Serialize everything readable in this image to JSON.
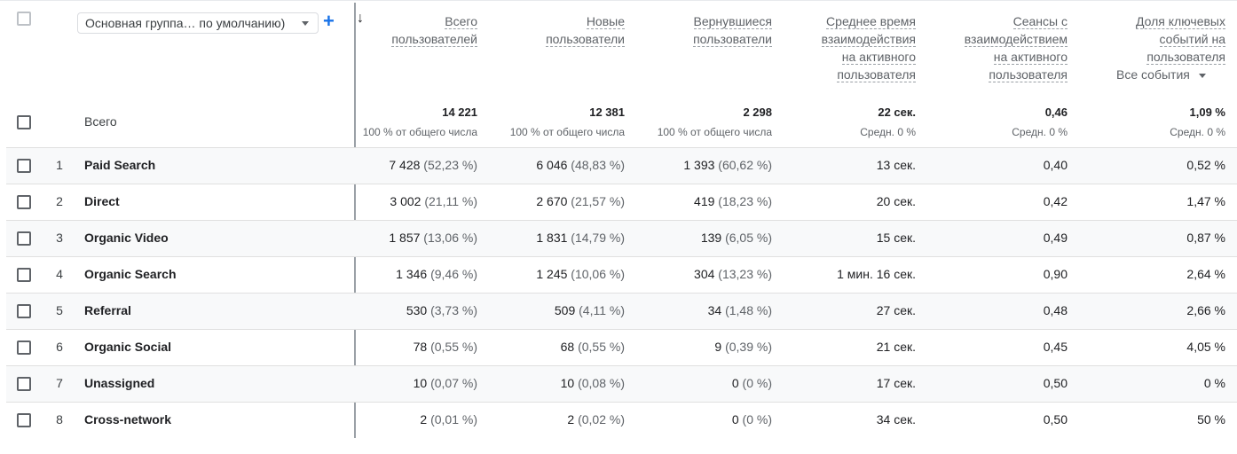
{
  "dimension_selector": {
    "label": "Основная группа… по умолчанию)"
  },
  "headers": [
    {
      "lines": [
        "Всего",
        "пользователей"
      ]
    },
    {
      "lines": [
        "Новые",
        "пользователи"
      ]
    },
    {
      "lines": [
        "Вернувшиеся",
        "пользователи"
      ]
    },
    {
      "lines": [
        "Среднее время",
        "взаимодействия",
        "на активного",
        "пользователя"
      ]
    },
    {
      "lines": [
        "Сеансы с",
        "взаимодействием",
        "на активного",
        "пользователя"
      ]
    },
    {
      "lines": [
        "Доля ключевых",
        "событий на",
        "пользователя"
      ]
    }
  ],
  "events_dropdown": {
    "label": "Все события"
  },
  "totals": {
    "label": "Всего",
    "values": [
      "14 221",
      "12 381",
      "2 298",
      "22 сек.",
      "0,46",
      "1,09 %"
    ],
    "subs": [
      "100 % от общего числа",
      "100 % от общего числа",
      "100 % от общего числа",
      "Средн. 0 %",
      "Средн. 0 %",
      "Средн. 0 %"
    ]
  },
  "rows": [
    {
      "index": "1",
      "name": "Paid Search",
      "users": "7 428",
      "users_pct": "(52,23 %)",
      "new": "6 046",
      "new_pct": "(48,83 %)",
      "ret": "1 393",
      "ret_pct": "(60,62 %)",
      "time": "13 сек.",
      "sessions": "0,40",
      "rate": "0,52 %"
    },
    {
      "index": "2",
      "name": "Direct",
      "users": "3 002",
      "users_pct": "(21,11 %)",
      "new": "2 670",
      "new_pct": "(21,57 %)",
      "ret": "419",
      "ret_pct": "(18,23 %)",
      "time": "20 сек.",
      "sessions": "0,42",
      "rate": "1,47 %"
    },
    {
      "index": "3",
      "name": "Organic Video",
      "users": "1 857",
      "users_pct": "(13,06 %)",
      "new": "1 831",
      "new_pct": "(14,79 %)",
      "ret": "139",
      "ret_pct": "(6,05 %)",
      "time": "15 сек.",
      "sessions": "0,49",
      "rate": "0,87 %"
    },
    {
      "index": "4",
      "name": "Organic Search",
      "users": "1 346",
      "users_pct": "(9,46 %)",
      "new": "1 245",
      "new_pct": "(10,06 %)",
      "ret": "304",
      "ret_pct": "(13,23 %)",
      "time": "1 мин. 16 сек.",
      "sessions": "0,90",
      "rate": "2,64 %"
    },
    {
      "index": "5",
      "name": "Referral",
      "users": "530",
      "users_pct": "(3,73 %)",
      "new": "509",
      "new_pct": "(4,11 %)",
      "ret": "34",
      "ret_pct": "(1,48 %)",
      "time": "27 сек.",
      "sessions": "0,48",
      "rate": "2,66 %"
    },
    {
      "index": "6",
      "name": "Organic Social",
      "users": "78",
      "users_pct": "(0,55 %)",
      "new": "68",
      "new_pct": "(0,55 %)",
      "ret": "9",
      "ret_pct": "(0,39 %)",
      "time": "21 сек.",
      "sessions": "0,45",
      "rate": "4,05 %"
    },
    {
      "index": "7",
      "name": "Unassigned",
      "users": "10",
      "users_pct": "(0,07 %)",
      "new": "10",
      "new_pct": "(0,08 %)",
      "ret": "0",
      "ret_pct": "(0 %)",
      "time": "17 сек.",
      "sessions": "0,50",
      "rate": "0 %"
    },
    {
      "index": "8",
      "name": "Cross-network",
      "users": "2",
      "users_pct": "(0,01 %)",
      "new": "2",
      "new_pct": "(0,02 %)",
      "ret": "0",
      "ret_pct": "(0 %)",
      "time": "34 сек.",
      "sessions": "0,50",
      "rate": "50 %"
    }
  ]
}
